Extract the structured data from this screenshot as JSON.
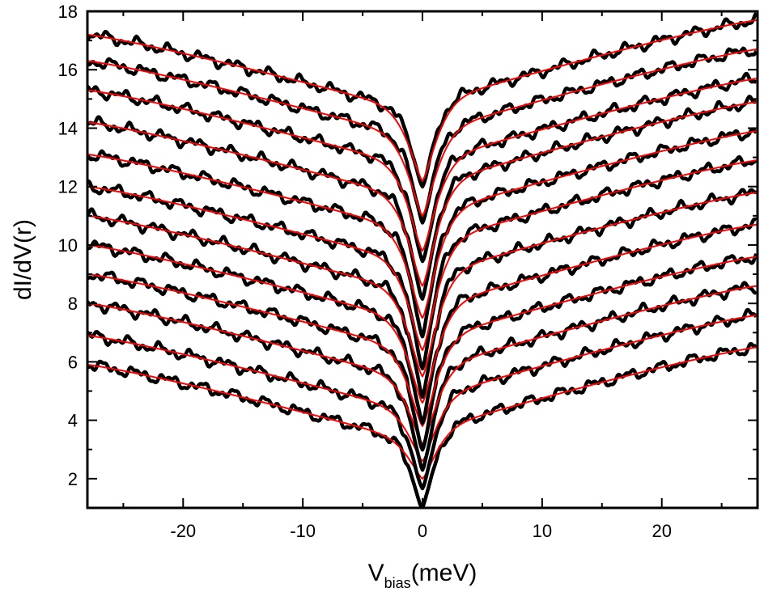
{
  "chart_data": {
    "type": "line",
    "title": "",
    "xlabel": {
      "main": "V",
      "subscript": "bias",
      "suffix": "(meV)"
    },
    "ylabel": "dI/dV(r)",
    "xlim": [
      -28,
      28
    ],
    "ylim": [
      1,
      18
    ],
    "x_ticks": [
      -20,
      -10,
      0,
      10,
      20
    ],
    "y_ticks": [
      2,
      4,
      6,
      8,
      10,
      12,
      14,
      16,
      18
    ],
    "x_tick_labels": [
      "-20",
      "-10",
      "0",
      "10",
      "20"
    ],
    "y_tick_labels": [
      "2",
      "4",
      "6",
      "8",
      "10",
      "12",
      "14",
      "16",
      "18"
    ],
    "grid": false,
    "legend": "none",
    "colors": {
      "data": "#000000",
      "fit": "#ff0000",
      "axes": "#000000"
    },
    "curve_model": "stacked V-shaped tunneling spectra: experimental data (thick black) with fits (thin red)",
    "series": [
      {
        "left": 5.9,
        "right": 6.5,
        "bottom": 1.0,
        "fit_bottom": 2.0
      },
      {
        "left": 6.9,
        "right": 7.6,
        "bottom": 1.6,
        "fit_bottom": 2.6
      },
      {
        "left": 8.0,
        "right": 8.6,
        "bottom": 2.3,
        "fit_bottom": 3.2
      },
      {
        "left": 9.0,
        "right": 9.6,
        "bottom": 3.0,
        "fit_bottom": 3.8
      },
      {
        "left": 10.0,
        "right": 10.7,
        "bottom": 3.9,
        "fit_bottom": 4.6
      },
      {
        "left": 11.0,
        "right": 11.8,
        "bottom": 4.8,
        "fit_bottom": 5.5
      },
      {
        "left": 12.0,
        "right": 12.9,
        "bottom": 5.8,
        "fit_bottom": 6.4
      },
      {
        "left": 13.1,
        "right": 13.9,
        "bottom": 6.9,
        "fit_bottom": 7.5
      },
      {
        "left": 14.2,
        "right": 14.9,
        "bottom": 8.1,
        "fit_bottom": 8.6
      },
      {
        "left": 15.3,
        "right": 15.7,
        "bottom": 9.4,
        "fit_bottom": 9.8
      },
      {
        "left": 16.3,
        "right": 16.7,
        "bottom": 10.8,
        "fit_bottom": 11.0
      },
      {
        "left": 17.2,
        "right": 17.7,
        "bottom": 12.0,
        "fit_bottom": 12.2
      }
    ]
  }
}
